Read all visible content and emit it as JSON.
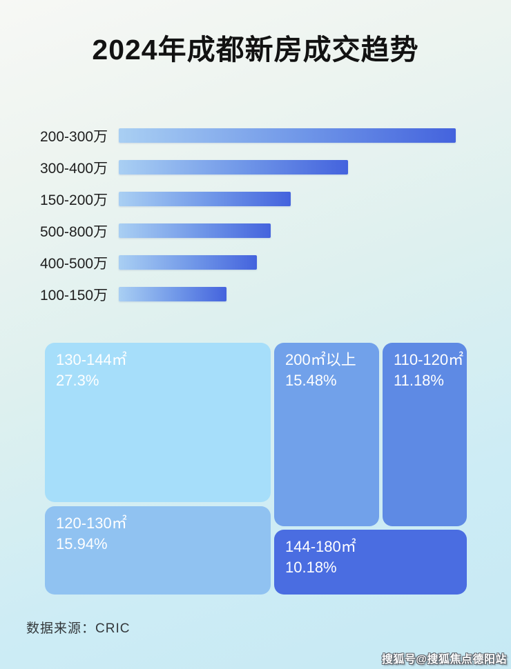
{
  "page": {
    "title": "2024年成都新房成交趋势",
    "footer": {
      "source_label": "数据来源：CRIC"
    },
    "watermark": "搜狐号@搜狐焦点德阳站"
  },
  "colors": {
    "bar_gradient_start": "#a9cff3",
    "bar_gradient_end": "#4463dd",
    "background_top": "#f7f8f5",
    "background_bottom": "#c6e9f4",
    "title_text": "#121212",
    "treemap_text": "#ffffff"
  },
  "chart_data": [
    {
      "type": "bar",
      "orientation": "horizontal",
      "categories": [
        "200-300万",
        "300-400万",
        "150-200万",
        "500-800万",
        "400-500万",
        "100-150万"
      ],
      "values": [
        100,
        68,
        51,
        45,
        41,
        32
      ],
      "values_note": "relative bar lengths as % of longest bar; chart shows no numeric axis or data labels",
      "xlabel": "",
      "ylabel": "",
      "grid": false,
      "legend": false
    },
    {
      "type": "treemap",
      "items": [
        {
          "label": "130-144㎡",
          "value_pct": 27.3,
          "value_text": "27.3%",
          "color": "#a6defa"
        },
        {
          "label": "200㎡以上",
          "value_pct": 15.48,
          "value_text": "15.48%",
          "color": "#71a1ea"
        },
        {
          "label": "110-120㎡",
          "value_pct": 11.18,
          "value_text": "11.18%",
          "color": "#5e8ae4"
        },
        {
          "label": "120-130㎡",
          "value_pct": 15.94,
          "value_text": "15.94%",
          "color": "#90c2f1"
        },
        {
          "label": "144-180㎡",
          "value_pct": 10.18,
          "value_text": "10.18%",
          "color": "#4a6de1"
        }
      ]
    }
  ]
}
